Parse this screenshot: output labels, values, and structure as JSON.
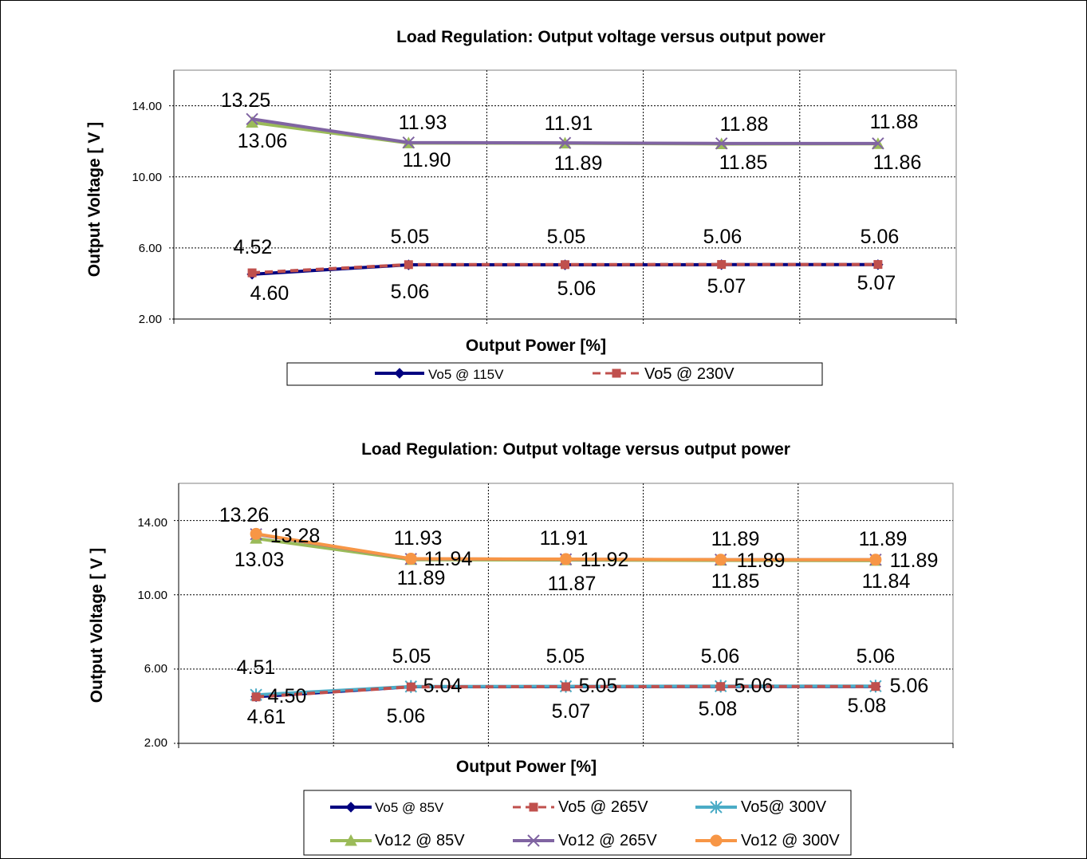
{
  "chart_data": [
    {
      "type": "line",
      "title": "Load Regulation: Output voltage versus output power",
      "xlabel": "Output Power [%]",
      "ylabel": "Output Voltage  [ V ]",
      "ylim": [
        2,
        16
      ],
      "yticks": [
        "2.00",
        "6.00",
        "10.00",
        "14.00"
      ],
      "grid": true,
      "legend_position": "bottom",
      "series": [
        {
          "name": "Vo5 @ 115V",
          "values": [
            4.52,
            5.05,
            5.05,
            5.06,
            5.06
          ],
          "color": "#000080",
          "style": "solid",
          "marker": "diamond"
        },
        {
          "name": "Vo5 @ 230V",
          "values": [
            4.6,
            5.06,
            5.06,
            5.07,
            5.07
          ],
          "color": "#c0504d",
          "style": "dashed",
          "marker": "square"
        },
        {
          "values": [
            13.06,
            11.9,
            11.89,
            11.85,
            11.86
          ],
          "color": "#9bbb59",
          "style": "solid",
          "marker": "triangle"
        },
        {
          "values": [
            13.25,
            11.93,
            11.91,
            11.88,
            11.88
          ],
          "color": "#8064a2",
          "style": "solid",
          "marker": "x"
        }
      ]
    },
    {
      "type": "line",
      "title": "Load Regulation: Output voltage versus output power",
      "xlabel": "Output Power [%]",
      "ylabel": "Output Voltage  [ V ]",
      "ylim": [
        2,
        16
      ],
      "yticks": [
        "2.00",
        "6.00",
        "10.00",
        "14.00"
      ],
      "grid": true,
      "legend_position": "bottom",
      "series": [
        {
          "name": "Vo5 @ 85V",
          "values": [
            4.51,
            5.05,
            5.05,
            5.06,
            5.06
          ],
          "color": "#000080",
          "style": "solid",
          "marker": "diamond"
        },
        {
          "name": "Vo5 @ 265V",
          "values": [
            4.5,
            5.04,
            5.05,
            5.06,
            5.06
          ],
          "color": "#c0504d",
          "style": "dashed",
          "marker": "square"
        },
        {
          "name": "Vo5@ 300V",
          "values": [
            4.61,
            5.06,
            5.07,
            5.08,
            5.08
          ],
          "color": "#4bacc6",
          "style": "solid",
          "marker": "star"
        },
        {
          "name": "Vo12 @ 85V",
          "values": [
            13.03,
            11.89,
            11.87,
            11.85,
            11.84
          ],
          "color": "#9bbb59",
          "style": "solid",
          "marker": "triangle"
        },
        {
          "name": "Vo12 @ 265V",
          "values": [
            13.26,
            11.93,
            11.91,
            11.89,
            11.89
          ],
          "color": "#8064a2",
          "style": "solid",
          "marker": "x"
        },
        {
          "name": "Vo12 @ 300V",
          "values": [
            13.28,
            11.94,
            11.92,
            11.89,
            11.89
          ],
          "color": "#f79646",
          "style": "solid",
          "marker": "circle"
        }
      ]
    }
  ],
  "labels1": [
    "13.25",
    "11.93",
    "11.91",
    "11.88",
    "11.88",
    "13.06",
    "11.90",
    "11.89",
    "11.85",
    "11.86",
    "4.52",
    "5.05",
    "5.05",
    "5.06",
    "5.06",
    "4.60",
    "5.06",
    "5.06",
    "5.07",
    "5.07"
  ],
  "labels2": [
    "13.26",
    "13.28",
    "13.03",
    "11.93",
    "11.94",
    "11.89",
    "11.91",
    "11.92",
    "11.87",
    "11.89",
    "11.89",
    "11.85",
    "11.89",
    "11.89",
    "11.84",
    "4.51",
    "4.50",
    "4.61",
    "5.05",
    "5.04",
    "5.06",
    "5.05",
    "5.05",
    "5.07",
    "5.06",
    "5.06",
    "5.08",
    "5.06",
    "5.06",
    "5.08"
  ]
}
